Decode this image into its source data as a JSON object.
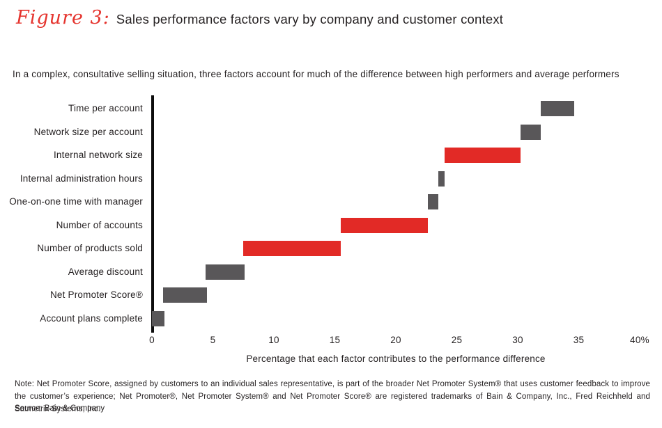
{
  "page": {
    "title_prefix": "Figure 3:",
    "title": "Sales performance factors vary by company and customer context",
    "subtitle": "In a complex, consultative selling situation, three factors account for much of the difference between high performers and average performers",
    "note": "Note: Net Promoter Score, assigned by customers to an individual sales representative, is part of the broader Net Promoter System® that uses customer feedback to improve the customer’s experience; Net Promoter®, Net Promoter System® and Net Promoter Score® are registered trademarks of Bain & Company, Inc., Fred Reichheld and Satmetrix Systems, Inc.",
    "source": "Source: Bain & Company"
  },
  "colors": {
    "accent_red": "#e22a26",
    "bar_gray": "#595759",
    "title_red": "#e5342e",
    "text": "#231f20",
    "axis": "#0d0d0d"
  },
  "chart_data": {
    "type": "bar",
    "subtype": "horizontal-waterfall",
    "title": "Sales performance factors vary by company and customer context",
    "xlabel": "Percentage that each factor contributes to the performance difference",
    "ylabel": "",
    "xlim": [
      0,
      40
    ],
    "grid": false,
    "legend": "none",
    "highlight_note": "Red bars mark the three factors that account for much of the difference between high and average performers",
    "x_ticks": [
      {
        "value": 0,
        "label": "0"
      },
      {
        "value": 5,
        "label": "5"
      },
      {
        "value": 10,
        "label": "10"
      },
      {
        "value": 15,
        "label": "15"
      },
      {
        "value": 20,
        "label": "20"
      },
      {
        "value": 25,
        "label": "25"
      },
      {
        "value": 30,
        "label": "30"
      },
      {
        "value": 35,
        "label": "35"
      },
      {
        "value": 40,
        "label": "40%"
      }
    ],
    "rows": [
      {
        "label": "Time per account",
        "start": 31.9,
        "end": 34.6,
        "value": 2.7,
        "highlight": false
      },
      {
        "label": "Network size per account",
        "start": 30.2,
        "end": 31.9,
        "value": 1.7,
        "highlight": false
      },
      {
        "label": "Internal network size",
        "start": 24.0,
        "end": 30.2,
        "value": 6.2,
        "highlight": true
      },
      {
        "label": "Internal administration hours",
        "start": 23.5,
        "end": 24.0,
        "value": 0.5,
        "highlight": false
      },
      {
        "label": "One-on-one time with manager",
        "start": 22.6,
        "end": 23.5,
        "value": 0.9,
        "highlight": false
      },
      {
        "label": "Number of accounts",
        "start": 15.5,
        "end": 22.6,
        "value": 7.1,
        "highlight": true
      },
      {
        "label": "Number of products sold",
        "start": 7.5,
        "end": 15.5,
        "value": 8.0,
        "highlight": true
      },
      {
        "label": "Average discount",
        "start": 4.4,
        "end": 7.6,
        "value": 3.2,
        "highlight": false
      },
      {
        "label": "Net Promoter Score®",
        "start": 0.9,
        "end": 4.5,
        "value": 3.6,
        "highlight": false
      },
      {
        "label": "Account plans complete",
        "start": 0.0,
        "end": 1.0,
        "value": 1.0,
        "highlight": false
      }
    ]
  }
}
